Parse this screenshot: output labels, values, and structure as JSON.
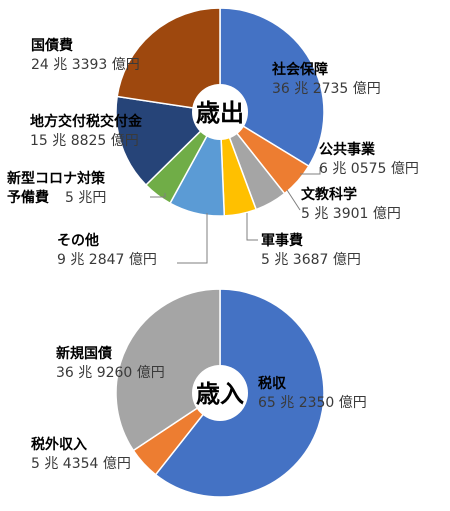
{
  "chart_data": [
    {
      "type": "pie",
      "center_label": "歳出",
      "slices": [
        {
          "name": "社会保障",
          "amount": "36 兆 2735 億円",
          "value": 36.2735,
          "color": "#4472C4"
        },
        {
          "name": "公共事業",
          "amount": "6 兆 0575 億円",
          "value": 6.0575,
          "color": "#ED7D31"
        },
        {
          "name": "文教科学",
          "amount": "5 兆 3901 億円",
          "value": 5.3901,
          "color": "#A5A5A5"
        },
        {
          "name": "軍事費",
          "amount": "5 兆 3687 億円",
          "value": 5.3687,
          "color": "#FFC000"
        },
        {
          "name": "その他",
          "amount": "9 兆 2847 億円",
          "value": 9.2847,
          "color": "#5B9BD5"
        },
        {
          "name": "新型コロナ対策予備費",
          "name_lines": [
            "新型コロナ対策",
            "予備費"
          ],
          "amount": "5 兆円",
          "value": 5.0,
          "color": "#70AD47"
        },
        {
          "name": "地方交付税交付金",
          "amount": "15 兆 8825 億円",
          "value": 15.8825,
          "color": "#264478"
        },
        {
          "name": "国債費",
          "amount": "24 兆 3393 億円",
          "value": 24.3393,
          "color": "#9E480E"
        }
      ]
    },
    {
      "type": "pie",
      "center_label": "歳入",
      "slices": [
        {
          "name": "税収",
          "amount": "65 兆 2350 億円",
          "value": 65.235,
          "color": "#4472C4"
        },
        {
          "name": "税外収入",
          "amount": "5 兆 4354 億円",
          "value": 5.4354,
          "color": "#ED7D31"
        },
        {
          "name": "新規国債",
          "amount": "36 兆 9260 億円",
          "value": 36.926,
          "color": "#A5A5A5"
        }
      ]
    }
  ]
}
